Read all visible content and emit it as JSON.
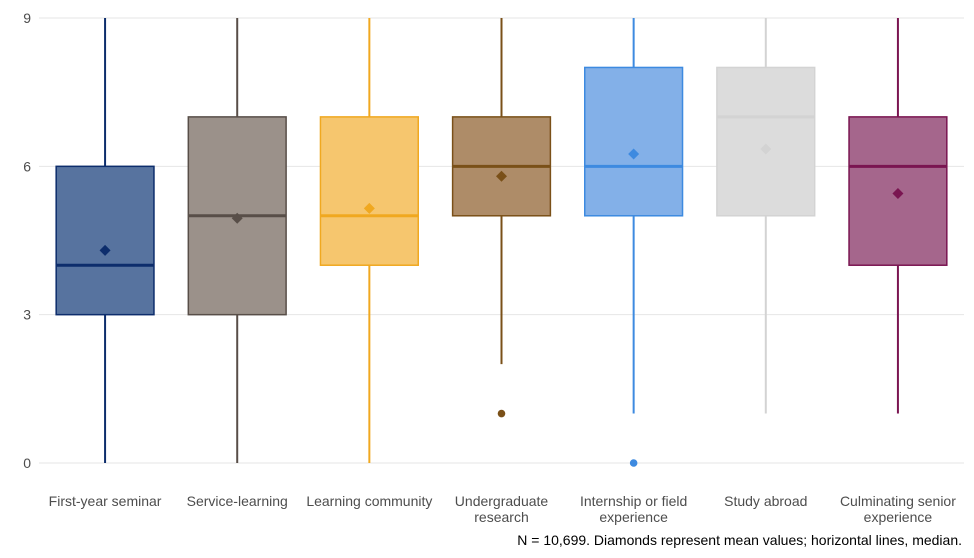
{
  "chart_data": {
    "type": "box",
    "ylim": [
      0,
      9
    ],
    "y_ticks": [
      "0",
      "3",
      "6",
      "9"
    ],
    "grid": "horizontal",
    "caption": "N = 10,699. Diamonds represent mean values; horizontal lines, median.",
    "categories": [
      {
        "label_lines": [
          "First-year seminar"
        ],
        "whisker_low": 0,
        "q1": 3,
        "median": 4,
        "q3": 6,
        "whisker_high": 9,
        "mean": 4.3,
        "outliers": [],
        "color": "#0d2d6c",
        "fill": "#57739f"
      },
      {
        "label_lines": [
          "Service-learning"
        ],
        "whisker_low": 0,
        "q1": 3,
        "median": 5,
        "q3": 7,
        "whisker_high": 9,
        "mean": 4.95,
        "outliers": [],
        "color": "#584e48",
        "fill": "#9b918a"
      },
      {
        "label_lines": [
          "Learning community"
        ],
        "whisker_low": 0,
        "q1": 4,
        "median": 5,
        "q3": 7,
        "whisker_high": 9,
        "mean": 5.15,
        "outliers": [],
        "color": "#f0a820",
        "fill": "#f6c66e"
      },
      {
        "label_lines": [
          "Undergraduate",
          "research"
        ],
        "whisker_low": 2,
        "q1": 5,
        "median": 6,
        "q3": 7,
        "whisker_high": 9,
        "mean": 5.8,
        "outliers": [
          1
        ],
        "color": "#7a5018",
        "fill": "#ae8c68"
      },
      {
        "label_lines": [
          "Internship or field",
          "experience"
        ],
        "whisker_low": 1,
        "q1": 5,
        "median": 6,
        "q3": 8,
        "whisker_high": 9,
        "mean": 6.25,
        "outliers": [
          0
        ],
        "color": "#3d8ae0",
        "fill": "#83b0e8"
      },
      {
        "label_lines": [
          "Study abroad"
        ],
        "whisker_low": 1,
        "q1": 5,
        "median": 7,
        "q3": 8,
        "whisker_high": 9,
        "mean": 6.35,
        "outliers": [],
        "color": "#d3d3d3",
        "fill": "#dcdcdc"
      },
      {
        "label_lines": [
          "Culminating senior",
          "experience"
        ],
        "whisker_low": 1,
        "q1": 4,
        "median": 6,
        "q3": 7,
        "whisker_high": 9,
        "mean": 5.45,
        "outliers": [],
        "color": "#7a1551",
        "fill": "#a5668c"
      }
    ]
  }
}
